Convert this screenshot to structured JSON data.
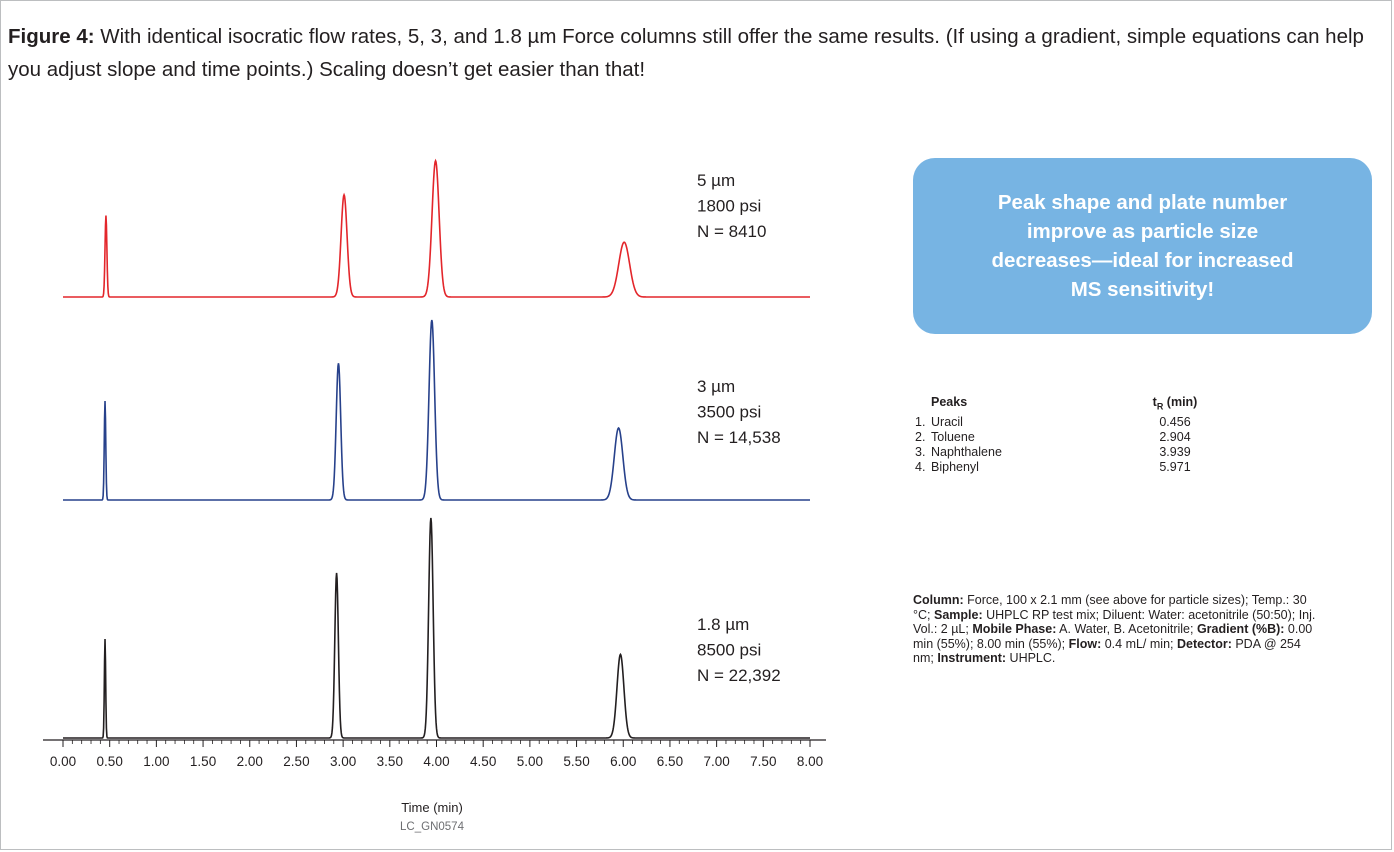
{
  "caption": {
    "label": "Figure 4:",
    "text": " With identical isocratic flow rates, 5, 3, and 1.8 µm Force columns still offer the same results. (If using a gradient, simple equations can help you adjust slope and time points.) Scaling doesn’t get easier than that!"
  },
  "callout": {
    "text": "Peak shape and plate number improve as particle size decreases—ideal for increased MS sensitivity!"
  },
  "chart_data": {
    "type": "line",
    "xlabel": "Time (min)",
    "xlim": [
      0.0,
      8.0
    ],
    "x_ticks": [
      "0.00",
      "0.50",
      "1.00",
      "1.50",
      "2.00",
      "2.50",
      "3.00",
      "3.50",
      "4.00",
      "4.50",
      "5.00",
      "5.50",
      "6.00",
      "6.50",
      "7.00",
      "7.50",
      "8.00"
    ],
    "footnote": "LC_GN0574",
    "grid": false,
    "series": [
      {
        "particle_size": "5 µm",
        "pressure": "1800 psi",
        "plates": "N = 8410",
        "color": "#e3262b",
        "peaks": [
          {
            "t": 0.46,
            "height": 0.55,
            "width": 0.01
          },
          {
            "t": 3.01,
            "height": 0.69,
            "width": 0.032
          },
          {
            "t": 3.99,
            "height": 0.92,
            "width": 0.038
          },
          {
            "t": 6.01,
            "height": 0.37,
            "width": 0.058
          }
        ]
      },
      {
        "particle_size": "3 µm",
        "pressure": "3500 psi",
        "plates": "N = 14,538",
        "color": "#27418b",
        "peaks": [
          {
            "t": 0.45,
            "height": 0.55,
            "width": 0.008
          },
          {
            "t": 2.95,
            "height": 0.76,
            "width": 0.024
          },
          {
            "t": 3.95,
            "height": 1.0,
            "width": 0.03
          },
          {
            "t": 5.95,
            "height": 0.4,
            "width": 0.046
          }
        ]
      },
      {
        "particle_size": "1.8 µm",
        "pressure": "8500 psi",
        "plates": "N = 22,392",
        "color": "#231f20",
        "peaks": [
          {
            "t": 0.45,
            "height": 0.45,
            "width": 0.007
          },
          {
            "t": 2.93,
            "height": 0.75,
            "width": 0.019
          },
          {
            "t": 3.94,
            "height": 1.0,
            "width": 0.024
          },
          {
            "t": 5.97,
            "height": 0.38,
            "width": 0.037
          }
        ]
      }
    ]
  },
  "peaks_table": {
    "headers": {
      "name": "Peaks",
      "tr_main": "t",
      "tr_sub": "R",
      "tr_unit": " (min)"
    },
    "rows": [
      {
        "num": "1.",
        "name": "Uracil",
        "tr": "0.456"
      },
      {
        "num": "2.",
        "name": "Toluene",
        "tr": "2.904"
      },
      {
        "num": "3.",
        "name": "Naphthalene",
        "tr": "3.939"
      },
      {
        "num": "4.",
        "name": "Biphenyl",
        "tr": "5.971"
      }
    ]
  },
  "conditions": {
    "column_label": "Column:",
    "column_text": " Force, 100 x 2.1 mm (see above for particle sizes); Temp.: 30 °C; ",
    "sample_label": "Sample:",
    "sample_text": " UHPLC RP test mix; Diluent: Water: acetonitrile (50:50); Inj. Vol.: 2 µL; ",
    "mobile_label": "Mobile Phase:",
    "mobile_text": " A. Water, B. Acetonitrile; ",
    "gradient_label": "Gradient (%B):",
    "gradient_text": " 0.00 min (55%); 8.00 min (55%); ",
    "flow_label": "Flow:",
    "flow_text": " 0.4 mL/ min; ",
    "detector_label": "Detector:",
    "detector_text": " PDA @ 254 nm; ",
    "instrument_label": "Instrument:",
    "instrument_text": " UHPLC."
  }
}
